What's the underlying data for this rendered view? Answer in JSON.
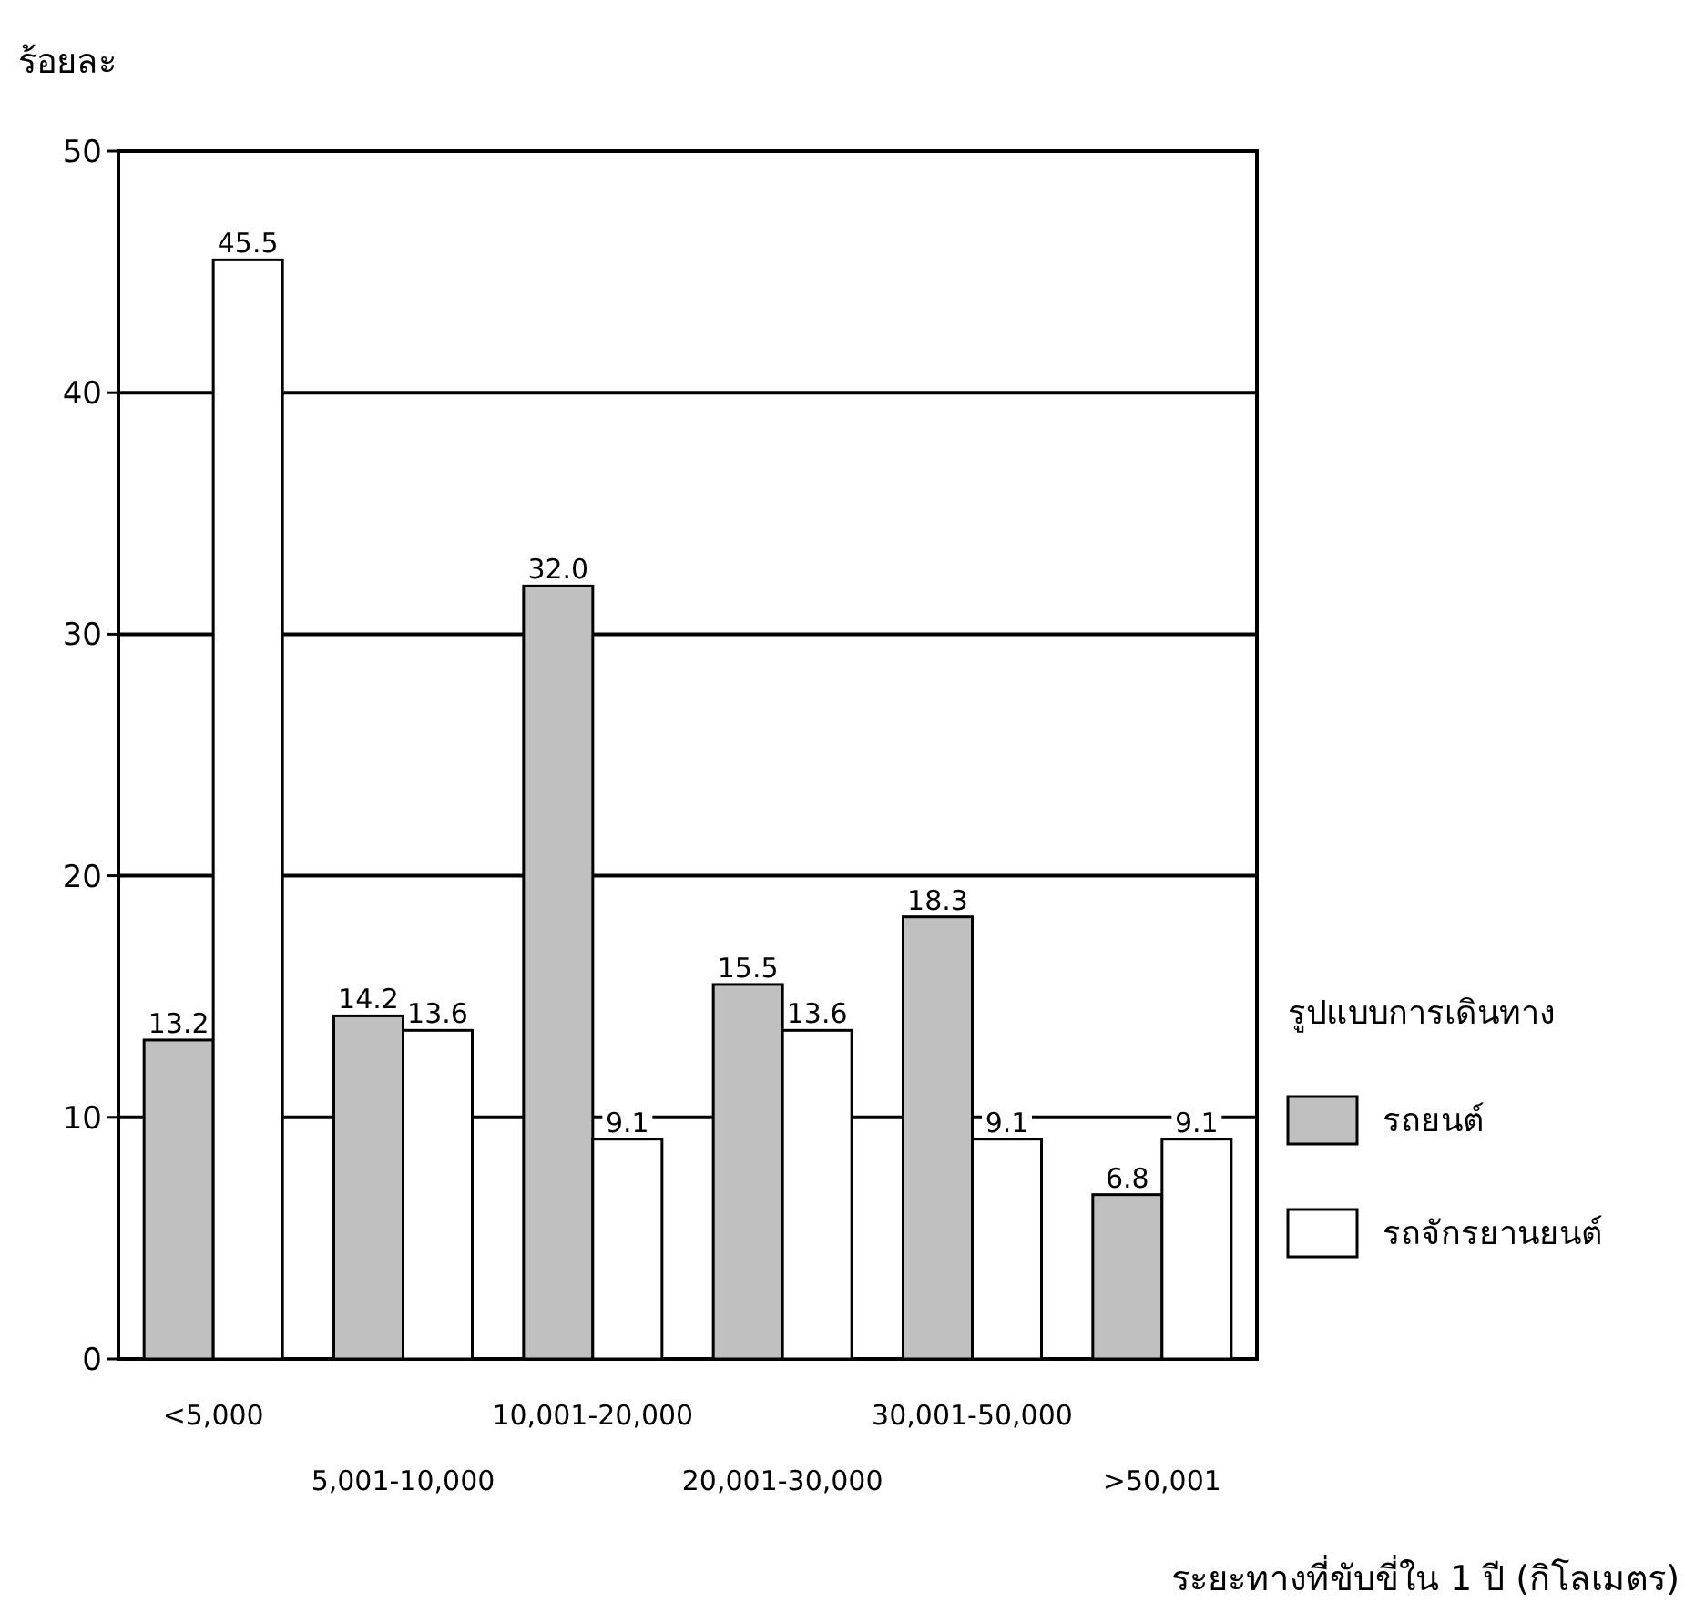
{
  "chart_data": {
    "type": "bar",
    "ylabel": "ร้อยละ",
    "xlabel": "ระยะทางที่ขับขี่ใน 1 ปี (กิโลเมตร)",
    "legend_title": "รูปแบบการเดินทาง",
    "categories": [
      "<5,000",
      "5,001-10,000",
      "10,001-20,000",
      "20,001-30,000",
      "30,001-50,000",
      ">50,001"
    ],
    "series": [
      {
        "name": "รถยนต์",
        "color": "#c0c0c0",
        "values": [
          13.2,
          14.2,
          32.0,
          15.5,
          18.3,
          6.8
        ],
        "value_labels": [
          "13.2",
          "14.2",
          "32.0",
          "15.5",
          "18.3",
          "6.8"
        ]
      },
      {
        "name": "รถจักรยานยนต์",
        "color": "#ffffff",
        "values": [
          45.5,
          13.6,
          9.1,
          13.6,
          9.1,
          9.1
        ],
        "value_labels": [
          "45.5",
          "13.6",
          "9.1",
          "13.6",
          "9.1",
          "9.1"
        ]
      }
    ],
    "ylim": [
      0,
      50
    ],
    "yticks": [
      0,
      10,
      20,
      30,
      40,
      50
    ],
    "grid": "y",
    "legend": "right"
  }
}
